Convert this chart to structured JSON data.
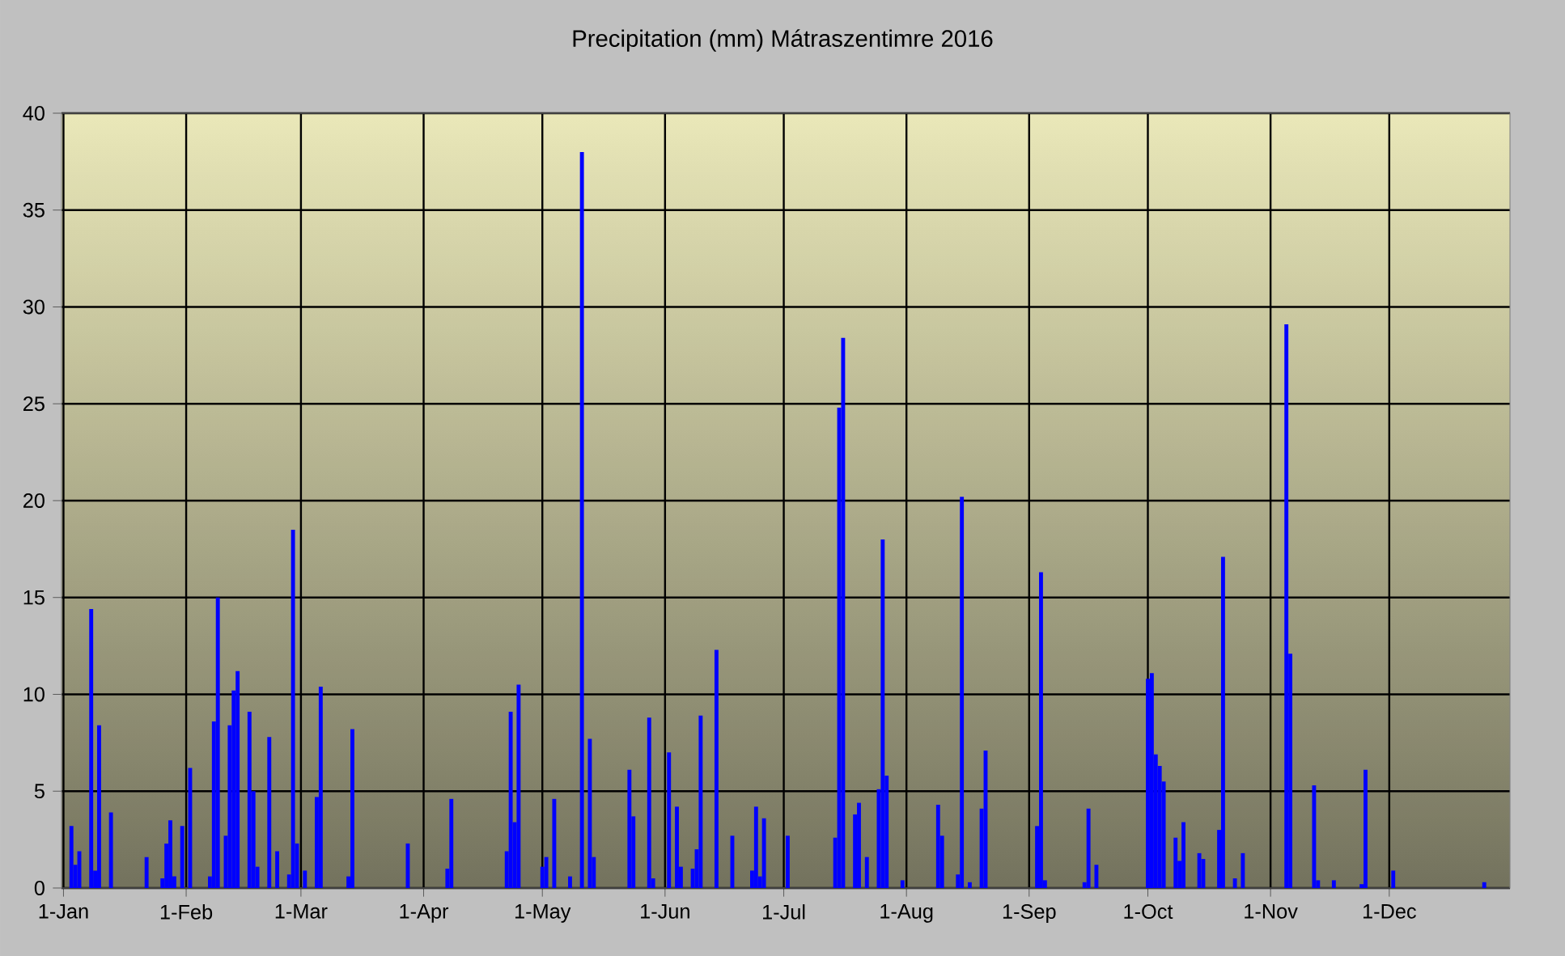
{
  "chart_data": {
    "type": "bar",
    "title": "Precipitation (mm) Mátraszentimre 2016",
    "color": "#0000ff",
    "categories": [
      "1-Jan",
      null,
      null,
      null,
      null,
      null,
      null,
      null,
      null,
      null,
      null,
      null,
      null,
      null,
      null,
      null,
      null,
      null,
      null,
      null,
      null,
      null,
      null,
      null,
      null,
      null,
      null,
      null,
      null,
      null,
      null,
      "1-Feb",
      null,
      null,
      null,
      null,
      null,
      null,
      null,
      null,
      null,
      null,
      null,
      null,
      null,
      null,
      null,
      null,
      null,
      null,
      null,
      null,
      null,
      null,
      null,
      null,
      null,
      null,
      null,
      null,
      "1-Mar",
      null,
      null,
      null,
      null,
      null,
      null,
      null,
      null,
      null,
      null,
      null,
      null,
      null,
      null,
      null,
      null,
      null,
      null,
      null,
      null,
      null,
      null,
      null,
      null,
      null,
      null,
      null,
      null,
      null,
      null,
      "1-Apr",
      null,
      null,
      null,
      null,
      null,
      null,
      null,
      null,
      null,
      null,
      null,
      null,
      null,
      null,
      null,
      null,
      null,
      null,
      null,
      null,
      null,
      null,
      null,
      null,
      null,
      null,
      null,
      null,
      null,
      "1-May",
      null,
      null,
      null,
      null,
      null,
      null,
      null,
      null,
      null,
      null,
      null,
      null,
      null,
      null,
      null,
      null,
      null,
      null,
      null,
      null,
      null,
      null,
      null,
      null,
      null,
      null,
      null,
      null,
      null,
      null,
      "1-Jun",
      null,
      null,
      null,
      null,
      null,
      null,
      null,
      null,
      null,
      null,
      null,
      null,
      null,
      null,
      null,
      null,
      null,
      null,
      null,
      null,
      null,
      null,
      null,
      null,
      null,
      null,
      null,
      null,
      null,
      "1-Jul",
      null,
      null,
      null,
      null,
      null,
      null,
      null,
      null,
      null,
      null,
      null,
      null,
      null,
      null,
      null,
      null,
      null,
      null,
      null,
      null,
      null,
      null,
      null,
      null,
      null,
      null,
      null,
      null,
      null,
      null,
      "1-Aug",
      null,
      null,
      null,
      null,
      null,
      null,
      null,
      null,
      null,
      null,
      null,
      null,
      null,
      null,
      null,
      null,
      null,
      null,
      null,
      null,
      null,
      null,
      null,
      null,
      null,
      null,
      null,
      null,
      null,
      null,
      "1-Sep",
      null,
      null,
      null,
      null,
      null,
      null,
      null,
      null,
      null,
      null,
      null,
      null,
      null,
      null,
      null,
      null,
      null,
      null,
      null,
      null,
      null,
      null,
      null,
      null,
      null,
      null,
      null,
      null,
      null,
      "1-Oct",
      null,
      null,
      null,
      null,
      null,
      null,
      null,
      null,
      null,
      null,
      null,
      null,
      null,
      null,
      null,
      null,
      null,
      null,
      null,
      null,
      null,
      null,
      null,
      null,
      null,
      null,
      null,
      null,
      null,
      null,
      "1-Nov",
      null,
      null,
      null,
      null,
      null,
      null,
      null,
      null,
      null,
      null,
      null,
      null,
      null,
      null,
      null,
      null,
      null,
      null,
      null,
      null,
      null,
      null,
      null,
      null,
      null,
      null,
      null,
      null,
      null,
      "1-Dec",
      null,
      null,
      null,
      null,
      null,
      null,
      null,
      null,
      null,
      null,
      null,
      null,
      null,
      null,
      null,
      null,
      null,
      null,
      null,
      null,
      null,
      null,
      null,
      null,
      null,
      null,
      null,
      null,
      null,
      null
    ],
    "values": [
      0,
      0,
      3.2,
      1.2,
      1.9,
      0,
      0,
      14.4,
      0.9,
      8.4,
      0,
      0,
      3.9,
      0,
      0,
      0,
      0,
      0,
      0,
      0,
      0,
      1.6,
      0,
      0,
      0,
      0.5,
      2.3,
      3.5,
      0.6,
      0,
      3.2,
      0,
      6.2,
      0,
      0,
      0,
      0,
      0.6,
      8.6,
      15.0,
      0,
      2.7,
      8.4,
      10.2,
      11.2,
      0,
      0,
      9.1,
      5.0,
      1.1,
      0,
      0,
      7.8,
      0,
      1.9,
      0,
      0,
      0.7,
      18.5,
      2.3,
      0,
      0.9,
      0,
      0,
      4.7,
      10.4,
      0,
      0,
      0,
      0,
      0,
      0,
      0.6,
      8.2,
      0,
      0,
      0,
      0,
      0,
      0,
      0,
      0,
      0,
      0,
      0,
      0,
      0,
      2.3,
      0,
      0,
      0,
      0,
      0,
      0,
      0,
      0,
      0,
      1.0,
      4.6,
      0,
      0,
      0,
      0,
      0,
      0,
      0,
      0,
      0,
      0,
      0,
      0,
      0,
      1.9,
      9.1,
      3.4,
      10.5,
      0,
      0,
      0,
      0,
      0,
      1.1,
      1.6,
      0,
      4.6,
      0,
      0,
      0,
      0.6,
      0,
      0,
      38.0,
      0,
      7.7,
      1.6,
      0,
      0,
      0,
      0,
      0,
      0,
      0,
      0,
      6.1,
      3.7,
      0,
      0,
      0,
      8.8,
      0.5,
      0,
      0,
      0,
      7.0,
      0,
      4.2,
      1.1,
      0,
      0,
      1.0,
      2.0,
      8.9,
      0,
      0,
      0,
      12.3,
      0,
      0,
      0,
      2.7,
      0,
      0,
      0,
      0,
      0.9,
      4.2,
      0.6,
      3.6,
      0,
      0,
      0,
      0,
      0,
      2.7,
      0,
      0,
      0,
      0,
      0,
      0,
      0,
      0,
      0,
      0,
      0,
      2.6,
      24.8,
      28.4,
      0,
      0,
      3.8,
      4.4,
      0,
      1.6,
      0,
      0,
      5.1,
      18.0,
      5.8,
      0,
      0,
      0,
      0.4,
      0,
      0,
      0,
      0,
      0,
      0,
      0,
      0,
      4.3,
      2.7,
      0,
      0,
      0,
      0.7,
      20.2,
      0,
      0.3,
      0,
      0,
      4.1,
      7.1,
      0,
      0,
      0,
      0,
      0,
      0,
      0,
      0,
      0,
      0,
      0,
      0,
      3.2,
      16.3,
      0.4,
      0,
      0,
      0,
      0,
      0,
      0,
      0,
      0,
      0,
      0.3,
      4.1,
      0,
      1.2,
      0,
      0,
      0,
      0,
      0,
      0,
      0,
      0,
      0,
      0,
      0,
      0,
      10.8,
      11.1,
      6.9,
      6.3,
      5.5,
      0,
      0,
      2.6,
      1.4,
      3.4,
      0,
      0,
      0,
      1.8,
      1.5,
      0,
      0,
      0,
      3.0,
      17.1,
      0,
      0,
      0.5,
      0,
      1.8,
      0,
      0,
      0,
      0,
      0,
      0,
      0,
      0,
      0,
      0,
      29.1,
      12.1,
      0,
      0,
      0,
      0,
      0,
      5.3,
      0.4,
      0,
      0,
      0,
      0.4,
      0,
      0,
      0,
      0,
      0,
      0,
      0.2,
      6.1,
      0,
      0,
      0,
      0,
      0,
      0,
      0.9,
      0,
      0,
      0,
      0,
      0,
      0,
      0,
      0,
      0,
      0,
      0,
      0,
      0,
      0,
      0,
      0,
      0,
      0,
      0,
      0,
      0,
      0,
      0.3,
      0,
      0,
      0,
      0,
      0,
      0
    ],
    "ylim": [
      0,
      40
    ],
    "yticks": [
      0,
      5,
      10,
      15,
      20,
      25,
      30,
      35,
      40
    ],
    "grid": true
  }
}
